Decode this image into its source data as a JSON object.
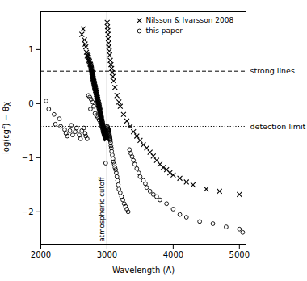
{
  "chart_data": {
    "type": "scatter",
    "xlabel": "Wavelength (A)",
    "ylabel": "log(εgf) − θχ",
    "xlim": [
      2000,
      5100
    ],
    "ylim": [
      -2.6,
      1.7
    ],
    "xticks": [
      2000,
      3000,
      4000,
      5000
    ],
    "yticks": [
      -2,
      -1,
      0,
      1
    ],
    "grid": false,
    "legend": "upper right",
    "series": [
      {
        "name": "Nilsson & Ivarsson 2008",
        "marker": "x",
        "color": "#000000",
        "x": [
          2620,
          2640,
          2660,
          2670,
          2680,
          2690,
          2700,
          2710,
          2715,
          2720,
          2725,
          2730,
          2735,
          2740,
          2745,
          2750,
          2755,
          2758,
          2760,
          2763,
          2765,
          2768,
          2770,
          2772,
          2775,
          2778,
          2780,
          2782,
          2785,
          2788,
          2790,
          2792,
          2795,
          2798,
          2800,
          2802,
          2805,
          2808,
          2810,
          2812,
          2815,
          2817,
          2820,
          2822,
          2825,
          2828,
          2830,
          2832,
          2835,
          2838,
          2840,
          2843,
          2845,
          2848,
          2850,
          2853,
          2855,
          2858,
          2860,
          2863,
          2865,
          2868,
          2870,
          2873,
          2875,
          2878,
          2880,
          2883,
          2885,
          2888,
          2890,
          2893,
          2895,
          2898,
          2900,
          2903,
          2905,
          2908,
          2910,
          2913,
          2915,
          2918,
          2920,
          2922,
          2925,
          2928,
          2930,
          2933,
          2935,
          2938,
          2940,
          2943,
          2945,
          2948,
          2950,
          2953,
          2955,
          2958,
          2960,
          2963,
          2965,
          2968,
          2970,
          2972,
          2975,
          2978,
          2980,
          2983,
          2985,
          2988,
          2990,
          2993,
          2995,
          2998,
          3003,
          3008,
          3012,
          3016,
          3020,
          3025,
          3030,
          3035,
          3040,
          3050,
          3060,
          3070,
          3080,
          3090,
          3100,
          3120,
          3150,
          3180,
          3200,
          3250,
          3300,
          3350,
          3400,
          3450,
          3500,
          3550,
          3600,
          3650,
          3700,
          3750,
          3800,
          3850,
          3900,
          3950,
          4000,
          4100,
          4200,
          4300,
          4500,
          4700,
          5000
        ],
        "values": [
          1.28,
          1.38,
          1.18,
          1.1,
          1.05,
          0.95,
          0.88,
          0.92,
          0.88,
          0.85,
          0.82,
          0.8,
          0.78,
          0.75,
          0.73,
          0.72,
          0.7,
          0.68,
          0.66,
          0.65,
          0.63,
          0.61,
          0.6,
          0.58,
          0.57,
          0.55,
          0.54,
          0.52,
          0.5,
          0.49,
          0.47,
          0.46,
          0.44,
          0.43,
          0.41,
          0.4,
          0.38,
          0.37,
          0.35,
          0.34,
          0.32,
          0.31,
          0.3,
          0.28,
          0.27,
          0.25,
          0.24,
          0.22,
          0.21,
          0.2,
          0.18,
          0.17,
          0.15,
          0.14,
          0.12,
          0.11,
          0.1,
          0.08,
          0.07,
          0.05,
          0.04,
          0.02,
          0.01,
          -0.01,
          -0.02,
          -0.04,
          -0.05,
          -0.07,
          -0.09,
          -0.1,
          -0.12,
          -0.13,
          -0.15,
          -0.17,
          -0.18,
          -0.2,
          -0.21,
          -0.23,
          -0.25,
          -0.27,
          -0.28,
          -0.3,
          -0.32,
          -0.33,
          -0.35,
          -0.37,
          -0.38,
          -0.4,
          -0.42,
          -0.43,
          -0.44,
          -0.46,
          -0.47,
          -0.49,
          -0.5,
          -0.51,
          -0.52,
          -0.53,
          -0.54,
          -0.55,
          -0.56,
          -0.57,
          -0.58,
          -0.59,
          -0.6,
          -0.61,
          -0.62,
          -0.63,
          -0.63,
          -0.64,
          -0.64,
          -0.65,
          -0.65,
          -0.65,
          1.5,
          1.42,
          1.35,
          1.28,
          1.2,
          1.12,
          1.05,
          0.97,
          0.9,
          0.8,
          0.72,
          0.65,
          0.57,
          0.5,
          0.42,
          0.3,
          0.15,
          0.03,
          -0.05,
          -0.2,
          -0.32,
          -0.42,
          -0.52,
          -0.6,
          -0.68,
          -0.76,
          -0.82,
          -0.9,
          -0.97,
          -1.05,
          -1.12,
          -1.18,
          -1.22,
          -1.28,
          -1.32,
          -1.38,
          -1.45,
          -1.5,
          -1.58,
          -1.62,
          -1.68
        ]
      },
      {
        "name": "this paper",
        "marker": "o",
        "color": "#000000",
        "x": [
          2080,
          2120,
          2200,
          2220,
          2280,
          2300,
          2360,
          2380,
          2400,
          2440,
          2460,
          2480,
          2520,
          2540,
          2580,
          2600,
          2620,
          2650,
          2670,
          2680,
          2700,
          2720,
          2740,
          2750,
          2760,
          2780,
          2800,
          2820,
          2840,
          2860,
          2880,
          2900,
          2920,
          2940,
          2960,
          2980,
          3005,
          3010,
          3015,
          3018,
          3020,
          3022,
          3025,
          3028,
          3030,
          3032,
          3035,
          3038,
          3040,
          3043,
          3045,
          3048,
          3050,
          3055,
          3060,
          3065,
          3070,
          3080,
          3090,
          3100,
          3110,
          3120,
          3130,
          3140,
          3150,
          3160,
          3170,
          3180,
          3200,
          3220,
          3240,
          3260,
          3280,
          3300,
          3320,
          3340,
          3360,
          3380,
          3400,
          3420,
          3450,
          3480,
          3500,
          3550,
          3580,
          3600,
          3650,
          3700,
          3750,
          3800,
          3900,
          4000,
          4100,
          4200,
          4400,
          4600,
          4800,
          5000,
          5050
        ],
        "values": [
          0.05,
          -0.1,
          -0.2,
          -0.38,
          -0.28,
          -0.42,
          -0.48,
          -0.55,
          -0.6,
          -0.5,
          -0.4,
          -0.58,
          -0.52,
          -0.45,
          -0.58,
          -0.65,
          -0.5,
          -0.45,
          -0.55,
          -0.6,
          -0.65,
          0.15,
          0.12,
          -0.1,
          0.08,
          0.03,
          -0.05,
          -0.18,
          -0.22,
          -0.25,
          -0.3,
          -0.35,
          -0.42,
          -0.45,
          -0.5,
          -1.1,
          -0.42,
          -0.44,
          -0.46,
          -0.47,
          -0.48,
          -0.49,
          -0.5,
          -0.51,
          -0.52,
          -0.54,
          -0.55,
          -0.58,
          -0.6,
          -0.62,
          -0.64,
          -0.66,
          -0.68,
          -0.72,
          -0.78,
          -0.82,
          -0.88,
          -0.95,
          -1.02,
          -1.08,
          -1.12,
          -1.18,
          -1.22,
          -1.28,
          -1.35,
          -1.42,
          -1.5,
          -1.58,
          -1.65,
          -1.72,
          -1.78,
          -1.85,
          -1.9,
          -1.95,
          -2.0,
          -0.85,
          -0.92,
          -0.98,
          -1.05,
          -1.12,
          -1.2,
          -1.28,
          -1.35,
          -1.42,
          -1.48,
          -1.55,
          -1.62,
          -1.68,
          -1.72,
          -1.78,
          -1.85,
          -1.95,
          -2.05,
          -2.1,
          -2.18,
          -2.22,
          -2.28,
          -2.32,
          -2.38
        ]
      }
    ],
    "reference_lines": [
      {
        "axis": "y",
        "value": 0.6,
        "line_style": "dashed",
        "label": "strong lines"
      },
      {
        "axis": "y",
        "value": -0.42,
        "line_style": "dotted",
        "label": "detection limit"
      },
      {
        "axis": "x",
        "value": 3000,
        "line_style": "solid",
        "label": "atmospheric cutoff"
      }
    ]
  }
}
